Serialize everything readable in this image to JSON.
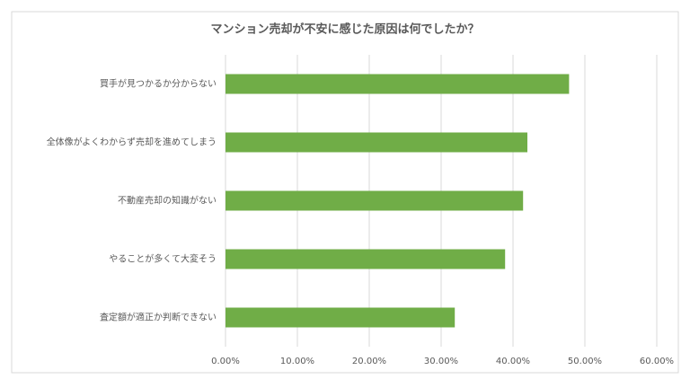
{
  "chart_data": {
    "type": "bar",
    "orientation": "horizontal",
    "title": "マンション売却が不安に感じた原因は何でしたか？",
    "categories": [
      "買手が見つかるか分からない",
      "全体像がよくわからず売却を進めてしまう",
      "不動産売却の知識がない",
      "やることが多くて大変そう",
      "査定額が適正か判断できない"
    ],
    "values": [
      47.8,
      42.0,
      41.4,
      38.9,
      31.9
    ],
    "color": "#70ad47",
    "xlim": [
      0,
      60
    ],
    "xticks": [
      {
        "value": 0,
        "label": "0.00%"
      },
      {
        "value": 10,
        "label": "10.00%"
      },
      {
        "value": 20,
        "label": "20.00%"
      },
      {
        "value": 30,
        "label": "30.00%"
      },
      {
        "value": 40,
        "label": "40.00%"
      },
      {
        "value": 50,
        "label": "50.00%"
      },
      {
        "value": 60,
        "label": "60.00%"
      }
    ],
    "grid": true
  }
}
